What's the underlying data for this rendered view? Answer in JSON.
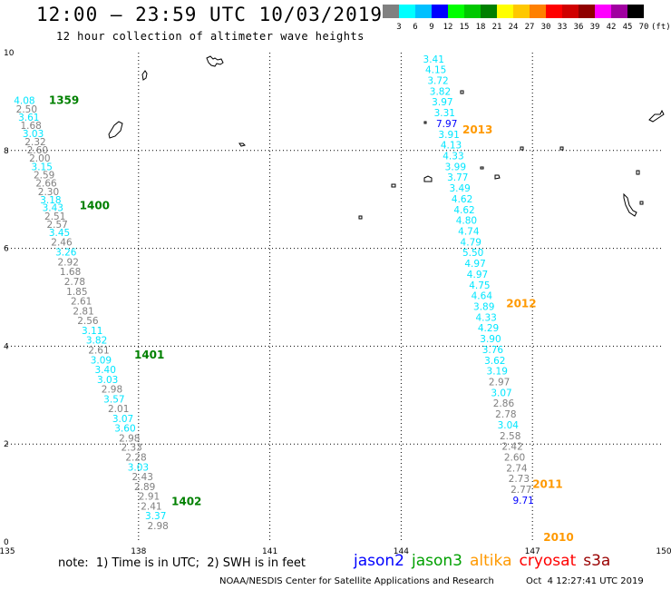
{
  "header": {
    "title": "12:00 – 23:59 UTC 10/03/2019",
    "subtitle": "12 hour collection of altimeter wave heights"
  },
  "legend_scale": {
    "labels": [
      "3",
      "6",
      "9",
      "12",
      "15",
      "18",
      "21",
      "24",
      "27",
      "30",
      "33",
      "36",
      "39",
      "42",
      "45",
      "70",
      "(ft)"
    ],
    "colors": [
      "#808080",
      "#00ffff",
      "#00c0ff",
      "#0000ff",
      "#00ff00",
      "#00c800",
      "#008000",
      "#ffff00",
      "#ffc800",
      "#ff8000",
      "#ff0000",
      "#d00000",
      "#900000",
      "#ff00ff",
      "#a000a0",
      "#000000"
    ]
  },
  "footer": {
    "note": "note:  1) Time is in UTC;  2) SWH is in feet",
    "satellites": [
      {
        "name": "jason2",
        "color": "#0000ff"
      },
      {
        "name": "jason3",
        "color": "#00a000"
      },
      {
        "name": "altika",
        "color": "#ff9900"
      },
      {
        "name": "cryosat",
        "color": "#ff0000"
      },
      {
        "name": "s3a",
        "color": "#990000"
      }
    ],
    "credit": "NOAA/NESDIS Center for Satellite Applications and Research",
    "timestamp": "Oct  4 12:27:41 UTC 2019"
  },
  "chart_data": {
    "type": "scatter",
    "xlim": [
      135,
      150
    ],
    "ylim": [
      0,
      10
    ],
    "x_ticks": [
      "135",
      "138",
      "141",
      "144",
      "147",
      "150"
    ],
    "y_ticks": [
      "0",
      "2",
      "4",
      "6",
      "8",
      "10"
    ],
    "grid": true,
    "colors": {
      "gray": "#808080",
      "cyan": "#00e6ff",
      "blue": "#0000ff",
      "green": "#008000",
      "orange": "#ff9900"
    },
    "time_labels": [
      {
        "text": "1359",
        "x": 135.95,
        "y": 8.95,
        "color": "green"
      },
      {
        "text": "1400",
        "x": 136.65,
        "y": 6.8,
        "color": "green"
      },
      {
        "text": "1401",
        "x": 137.9,
        "y": 3.75,
        "color": "green"
      },
      {
        "text": "1402",
        "x": 138.75,
        "y": 0.75,
        "color": "green"
      },
      {
        "text": "2013",
        "x": 145.4,
        "y": 8.35,
        "color": "orange"
      },
      {
        "text": "2012",
        "x": 146.4,
        "y": 4.8,
        "color": "orange"
      },
      {
        "text": "2011",
        "x": 147.0,
        "y": 1.1,
        "color": "orange"
      },
      {
        "text": "2010",
        "x": 147.25,
        "y": 0.02,
        "color": "orange"
      }
    ],
    "tracks": [
      {
        "name": "",
        "points": [
          {
            "x": 135.15,
            "y": 8.95,
            "v": "4.08",
            "c": "cyan"
          },
          {
            "x": 135.2,
            "y": 8.78,
            "v": "2.50",
            "c": "gray"
          },
          {
            "x": 135.25,
            "y": 8.61,
            "v": "3.61",
            "c": "cyan"
          },
          {
            "x": 135.3,
            "y": 8.44,
            "v": "1.68",
            "c": "gray"
          },
          {
            "x": 135.35,
            "y": 8.27,
            "v": "3.03",
            "c": "cyan"
          },
          {
            "x": 135.4,
            "y": 8.11,
            "v": "2.32",
            "c": "gray"
          },
          {
            "x": 135.45,
            "y": 7.94,
            "v": "2.60",
            "c": "gray"
          },
          {
            "x": 135.5,
            "y": 7.77,
            "v": "2.00",
            "c": "gray"
          },
          {
            "x": 135.55,
            "y": 7.6,
            "v": "3.15",
            "c": "cyan"
          },
          {
            "x": 135.6,
            "y": 7.43,
            "v": "2.59",
            "c": "gray"
          },
          {
            "x": 135.65,
            "y": 7.26,
            "v": "2.66",
            "c": "gray"
          },
          {
            "x": 135.7,
            "y": 7.09,
            "v": "2.30",
            "c": "gray"
          },
          {
            "x": 135.75,
            "y": 6.92,
            "v": "3.18",
            "c": "cyan"
          },
          {
            "x": 135.8,
            "y": 6.76,
            "v": "3.43",
            "c": "cyan"
          },
          {
            "x": 135.85,
            "y": 6.59,
            "v": "2.51",
            "c": "gray"
          },
          {
            "x": 135.9,
            "y": 6.42,
            "v": "2.57",
            "c": "gray"
          },
          {
            "x": 135.95,
            "y": 6.25,
            "v": "3.45",
            "c": "cyan"
          },
          {
            "x": 136.0,
            "y": 6.06,
            "v": "2.46",
            "c": "gray"
          },
          {
            "x": 136.1,
            "y": 5.85,
            "v": "3.26",
            "c": "cyan"
          },
          {
            "x": 136.15,
            "y": 5.65,
            "v": "2.92",
            "c": "gray"
          },
          {
            "x": 136.2,
            "y": 5.45,
            "v": "1.68",
            "c": "gray"
          },
          {
            "x": 136.3,
            "y": 5.25,
            "v": "2.78",
            "c": "gray"
          },
          {
            "x": 136.35,
            "y": 5.05,
            "v": "1.85",
            "c": "gray"
          },
          {
            "x": 136.45,
            "y": 4.85,
            "v": "2.61",
            "c": "gray"
          },
          {
            "x": 136.5,
            "y": 4.65,
            "v": "2.81",
            "c": "gray"
          },
          {
            "x": 136.6,
            "y": 4.45,
            "v": "2.56",
            "c": "gray"
          },
          {
            "x": 136.7,
            "y": 4.25,
            "v": "3.11",
            "c": "cyan"
          },
          {
            "x": 136.8,
            "y": 4.05,
            "v": "3.82",
            "c": "cyan"
          },
          {
            "x": 136.85,
            "y": 3.85,
            "v": "2.61",
            "c": "gray"
          },
          {
            "x": 136.9,
            "y": 3.65,
            "v": "3.09",
            "c": "cyan"
          },
          {
            "x": 137.0,
            "y": 3.45,
            "v": "3.40",
            "c": "cyan"
          },
          {
            "x": 137.05,
            "y": 3.25,
            "v": "3.03",
            "c": "cyan"
          },
          {
            "x": 137.15,
            "y": 3.05,
            "v": "2.98",
            "c": "gray"
          },
          {
            "x": 137.2,
            "y": 2.85,
            "v": "3.57",
            "c": "cyan"
          },
          {
            "x": 137.3,
            "y": 2.65,
            "v": "2.01",
            "c": "gray"
          },
          {
            "x": 137.4,
            "y": 2.45,
            "v": "3.07",
            "c": "cyan"
          },
          {
            "x": 137.45,
            "y": 2.25,
            "v": "3.60",
            "c": "cyan"
          },
          {
            "x": 137.55,
            "y": 2.05,
            "v": "2.98",
            "c": "gray"
          },
          {
            "x": 137.6,
            "y": 1.86,
            "v": "2.33",
            "c": "gray"
          },
          {
            "x": 137.7,
            "y": 1.66,
            "v": "2.28",
            "c": "gray"
          },
          {
            "x": 137.75,
            "y": 1.46,
            "v": "3.03",
            "c": "cyan"
          },
          {
            "x": 137.85,
            "y": 1.26,
            "v": "2.43",
            "c": "gray"
          },
          {
            "x": 137.9,
            "y": 1.06,
            "v": "2.89",
            "c": "gray"
          },
          {
            "x": 138.0,
            "y": 0.86,
            "v": "2.91",
            "c": "gray"
          },
          {
            "x": 138.05,
            "y": 0.66,
            "v": "2.41",
            "c": "gray"
          },
          {
            "x": 138.15,
            "y": 0.46,
            "v": "3.37",
            "c": "cyan"
          },
          {
            "x": 138.2,
            "y": 0.26,
            "v": "2.98",
            "c": "gray"
          }
        ]
      },
      {
        "name": "",
        "points": [
          {
            "x": 144.5,
            "y": 9.8,
            "v": "3.41",
            "c": "cyan"
          },
          {
            "x": 144.55,
            "y": 9.58,
            "v": "4.15",
            "c": "cyan"
          },
          {
            "x": 144.6,
            "y": 9.36,
            "v": "3.72",
            "c": "cyan"
          },
          {
            "x": 144.65,
            "y": 9.14,
            "v": "3.82",
            "c": "cyan"
          },
          {
            "x": 144.7,
            "y": 8.92,
            "v": "3.97",
            "c": "cyan"
          },
          {
            "x": 144.75,
            "y": 8.7,
            "v": "3.31",
            "c": "cyan"
          },
          {
            "x": 144.8,
            "y": 8.48,
            "v": "7.97",
            "c": "blue"
          },
          {
            "x": 144.85,
            "y": 8.26,
            "v": "3.91",
            "c": "cyan"
          },
          {
            "x": 144.9,
            "y": 8.04,
            "v": "4.13",
            "c": "cyan"
          },
          {
            "x": 144.95,
            "y": 7.82,
            "v": "4.33",
            "c": "cyan"
          },
          {
            "x": 145.0,
            "y": 7.6,
            "v": "3.99",
            "c": "cyan"
          },
          {
            "x": 145.05,
            "y": 7.38,
            "v": "3.77",
            "c": "cyan"
          },
          {
            "x": 145.1,
            "y": 7.16,
            "v": "3.49",
            "c": "cyan"
          },
          {
            "x": 145.15,
            "y": 6.94,
            "v": "4.62",
            "c": "cyan"
          },
          {
            "x": 145.2,
            "y": 6.72,
            "v": "4.62",
            "c": "cyan"
          },
          {
            "x": 145.25,
            "y": 6.5,
            "v": "4.80",
            "c": "cyan"
          },
          {
            "x": 145.3,
            "y": 6.28,
            "v": "4.74",
            "c": "cyan"
          },
          {
            "x": 145.35,
            "y": 6.06,
            "v": "4.79",
            "c": "cyan"
          },
          {
            "x": 145.4,
            "y": 5.84,
            "v": "5.50",
            "c": "cyan"
          },
          {
            "x": 145.45,
            "y": 5.62,
            "v": "4.97",
            "c": "cyan"
          },
          {
            "x": 145.5,
            "y": 5.4,
            "v": "4.97",
            "c": "cyan"
          },
          {
            "x": 145.55,
            "y": 5.18,
            "v": "4.75",
            "c": "cyan"
          },
          {
            "x": 145.6,
            "y": 4.96,
            "v": "4.64",
            "c": "cyan"
          },
          {
            "x": 145.65,
            "y": 4.74,
            "v": "3.89",
            "c": "cyan"
          },
          {
            "x": 145.7,
            "y": 4.52,
            "v": "4.33",
            "c": "cyan"
          },
          {
            "x": 145.75,
            "y": 4.3,
            "v": "4.29",
            "c": "cyan"
          },
          {
            "x": 145.8,
            "y": 4.08,
            "v": "3.90",
            "c": "cyan"
          },
          {
            "x": 145.85,
            "y": 3.86,
            "v": "3.76",
            "c": "cyan"
          },
          {
            "x": 145.9,
            "y": 3.64,
            "v": "3.62",
            "c": "cyan"
          },
          {
            "x": 145.95,
            "y": 3.42,
            "v": "3.19",
            "c": "cyan"
          },
          {
            "x": 146.0,
            "y": 3.2,
            "v": "2.97",
            "c": "gray"
          },
          {
            "x": 146.05,
            "y": 2.98,
            "v": "3.07",
            "c": "cyan"
          },
          {
            "x": 146.1,
            "y": 2.76,
            "v": "2.86",
            "c": "gray"
          },
          {
            "x": 146.15,
            "y": 2.54,
            "v": "2.78",
            "c": "gray"
          },
          {
            "x": 146.2,
            "y": 2.32,
            "v": "3.04",
            "c": "cyan"
          },
          {
            "x": 146.25,
            "y": 2.1,
            "v": "2.58",
            "c": "gray"
          },
          {
            "x": 146.3,
            "y": 1.88,
            "v": "2.42",
            "c": "gray"
          },
          {
            "x": 146.35,
            "y": 1.66,
            "v": "2.60",
            "c": "gray"
          },
          {
            "x": 146.4,
            "y": 1.44,
            "v": "2.74",
            "c": "gray"
          },
          {
            "x": 146.45,
            "y": 1.22,
            "v": "2.73",
            "c": "gray"
          },
          {
            "x": 146.5,
            "y": 1.0,
            "v": "2.77",
            "c": "gray"
          },
          {
            "x": 146.55,
            "y": 0.78,
            "v": "9.71",
            "c": "blue"
          }
        ]
      }
    ]
  }
}
